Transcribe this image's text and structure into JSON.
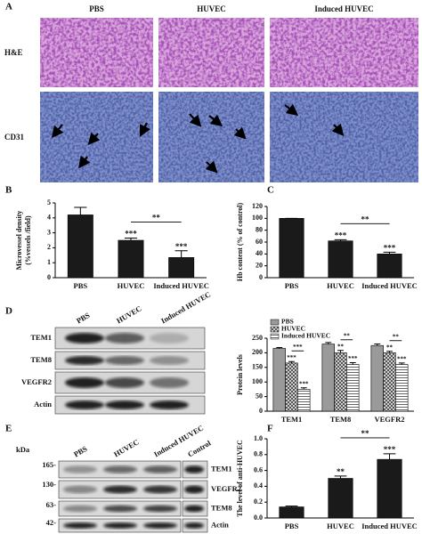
{
  "panel_letters": [
    "A",
    "B",
    "C",
    "D",
    "E",
    "F"
  ],
  "histology": {
    "columns": [
      "PBS",
      "HUVEC",
      "Induced HUVEC"
    ],
    "rows": [
      "H&E",
      "CD31"
    ]
  },
  "blot_d": {
    "columns": [
      "PBS",
      "HUVEC",
      "Induced HUVEC"
    ],
    "rows": [
      "TEM1",
      "TEM8",
      "VEGFR2",
      "Actin"
    ]
  },
  "blot_e": {
    "unit": "kDa",
    "markers": [
      "165-",
      "130-",
      "63-",
      "42-"
    ],
    "columns": [
      "PBS",
      "HUVEC",
      "Induced HUVEC",
      "Control"
    ],
    "rows": [
      "TEM1",
      "VEGFR2",
      "TEM8",
      "Actin"
    ]
  },
  "chart_data": [
    {
      "type": "bar",
      "y_label": [
        "Microvessel density",
        "(%vessels /field)"
      ],
      "categories": [
        "PBS",
        "HUVEC",
        "Induced HUVEC"
      ],
      "values": [
        4.2,
        2.5,
        1.35
      ],
      "errors": [
        0.5,
        0.15,
        0.45
      ],
      "color": "#1a1a1a",
      "ylim": [
        0,
        5
      ],
      "yticks": [
        0,
        1,
        2,
        3,
        4,
        5
      ],
      "annotations": [
        "***",
        "***",
        "**"
      ]
    },
    {
      "type": "bar",
      "y_label": [
        "Hb content (% of control)"
      ],
      "categories": [
        "PBS",
        "HUVEC",
        "Induced HUVEC"
      ],
      "values": [
        100,
        62,
        40
      ],
      "errors": [
        0,
        2,
        3
      ],
      "color": "#1a1a1a",
      "ylim": [
        0,
        120
      ],
      "yticks": [
        0,
        20,
        40,
        60,
        80,
        100,
        120
      ],
      "annotations": [
        "***",
        "***",
        "**"
      ]
    },
    {
      "type": "bar",
      "y_label": [
        "Protein levels"
      ],
      "categories": [
        "TEM1",
        "TEM8",
        "VEGFR2"
      ],
      "series": [
        {
          "name": "PBS",
          "color": "#9a9a9a",
          "hatch": "none",
          "values": [
            215,
            230,
            225
          ],
          "errors": [
            3,
            5,
            5
          ]
        },
        {
          "name": "HUVEC",
          "color": "#e6e6e6",
          "hatch": "cross",
          "values": [
            165,
            200,
            200
          ],
          "errors": [
            5,
            8,
            5
          ]
        },
        {
          "name": "Induced HUVEC",
          "color": "#ffffff",
          "hatch": "horizontal",
          "values": [
            75,
            160,
            160
          ],
          "errors": [
            5,
            6,
            5
          ]
        }
      ],
      "ylim": [
        0,
        250
      ],
      "yticks": [
        0,
        50,
        100,
        150,
        200,
        250
      ],
      "legend": "upper left",
      "annotations": [
        "***",
        "***",
        "***",
        "**",
        "***",
        "**",
        "**",
        "***",
        "**"
      ]
    },
    {
      "type": "bar",
      "y_label": [
        "The level of anti-HUVEC"
      ],
      "categories": [
        "PBS",
        "HUVEC",
        "Induced HUVEC"
      ],
      "values": [
        0.14,
        0.5,
        0.74
      ],
      "errors": [
        0.01,
        0.03,
        0.07
      ],
      "color": "#1a1a1a",
      "ylim": [
        0,
        1.0
      ],
      "yticks": [
        {
          "value": 0,
          "label": "0.0"
        },
        0.2,
        0.4,
        0.6,
        0.8,
        {
          "value": 1.0,
          "label": "1.0"
        }
      ],
      "annotations": [
        "**",
        "***",
        "**"
      ]
    }
  ]
}
